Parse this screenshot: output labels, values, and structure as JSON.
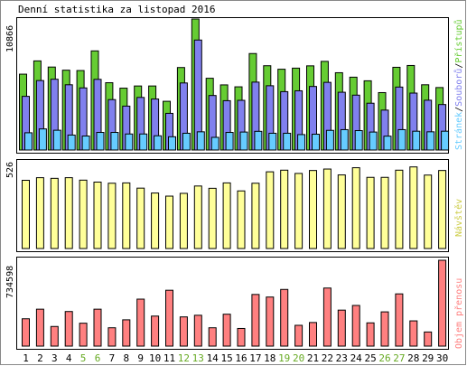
{
  "title": "Denní statistika za listopad 2016",
  "colors": {
    "hits": "#66cc33",
    "files": "#8080ee",
    "pages": "#66ccff",
    "visits": "#ffff99",
    "kbytes": "#ff8080",
    "weekend": "#66aa22",
    "weekday": "#000000"
  },
  "labels": {
    "hits": "Přístupů",
    "files": "Souborů",
    "pages": "Stránek",
    "visits": "Návštěv",
    "kbytes": "Objem přenosu"
  },
  "chart_data": [
    {
      "type": "bar",
      "title": "Denní statistika za listopad 2016",
      "categories": [
        "1",
        "2",
        "3",
        "4",
        "5",
        "6",
        "7",
        "8",
        "9",
        "10",
        "11",
        "12",
        "13",
        "14",
        "15",
        "16",
        "17",
        "18",
        "19",
        "20",
        "21",
        "22",
        "23",
        "24",
        "25",
        "26",
        "27",
        "28",
        "29",
        "30"
      ],
      "weekend_days": [
        "5",
        "6",
        "12",
        "13",
        "19",
        "20",
        "26",
        "27"
      ],
      "ymax_label": "10866",
      "ylim": [
        0,
        10866
      ],
      "legend": [
        "Stránek",
        "Souborů",
        "Přístupů"
      ],
      "series": [
        {
          "name": "Přístupů",
          "values": [
            6290,
            7390,
            6880,
            6620,
            6590,
            8220,
            5580,
            5130,
            5310,
            5310,
            4040,
            6840,
            10866,
            5950,
            5400,
            5240,
            8000,
            6990,
            6700,
            6790,
            6980,
            7350,
            6410,
            6040,
            5740,
            4760,
            6860,
            7010,
            5410,
            5180
          ]
        },
        {
          "name": "Souborů",
          "values": [
            4450,
            5760,
            5870,
            5410,
            5150,
            5860,
            4180,
            3640,
            4360,
            4230,
            3040,
            5560,
            9120,
            4520,
            4090,
            4120,
            5630,
            5330,
            4840,
            4910,
            5270,
            5610,
            4790,
            4550,
            3880,
            3310,
            5220,
            4720,
            4130,
            3770
          ]
        },
        {
          "name": "Stránek",
          "values": [
            1430,
            1750,
            1640,
            1240,
            1160,
            1460,
            1460,
            1330,
            1330,
            1180,
            1100,
            1390,
            1510,
            1050,
            1460,
            1490,
            1550,
            1390,
            1390,
            1280,
            1310,
            1630,
            1690,
            1610,
            1490,
            1150,
            1690,
            1560,
            1510,
            1560
          ]
        }
      ]
    },
    {
      "type": "bar",
      "categories": [
        "1",
        "2",
        "3",
        "4",
        "5",
        "6",
        "7",
        "8",
        "9",
        "10",
        "11",
        "12",
        "13",
        "14",
        "15",
        "16",
        "17",
        "18",
        "19",
        "20",
        "21",
        "22",
        "23",
        "24",
        "25",
        "26",
        "27",
        "28",
        "29",
        "30"
      ],
      "ymax_label": "526",
      "ylim": [
        0,
        526
      ],
      "legend": [
        "Návštěv"
      ],
      "series": [
        {
          "name": "Návštěv",
          "values": [
            418,
            434,
            430,
            434,
            419,
            407,
            400,
            402,
            370,
            340,
            321,
            338,
            383,
            369,
            402,
            353,
            400,
            470,
            480,
            460,
            478,
            487,
            451,
            495,
            436,
            436,
            480,
            500,
            450,
            478
          ]
        }
      ]
    },
    {
      "type": "bar",
      "categories": [
        "1",
        "2",
        "3",
        "4",
        "5",
        "6",
        "7",
        "8",
        "9",
        "10",
        "11",
        "12",
        "13",
        "14",
        "15",
        "16",
        "17",
        "18",
        "19",
        "20",
        "21",
        "22",
        "23",
        "24",
        "25",
        "26",
        "27",
        "28",
        "29",
        "30"
      ],
      "ymax_label": "734598",
      "ylim": [
        0,
        734598
      ],
      "legend": [
        "Objem přenosu"
      ],
      "series": [
        {
          "name": "Objem přenosu",
          "values": [
            234000,
            316000,
            168000,
            296000,
            196000,
            316000,
            157000,
            225000,
            402000,
            257000,
            478000,
            250000,
            264000,
            157000,
            273000,
            151000,
            442000,
            420000,
            485000,
            178000,
            202000,
            497000,
            308000,
            348000,
            199000,
            293000,
            447000,
            216000,
            121000,
            734598
          ]
        }
      ]
    }
  ]
}
